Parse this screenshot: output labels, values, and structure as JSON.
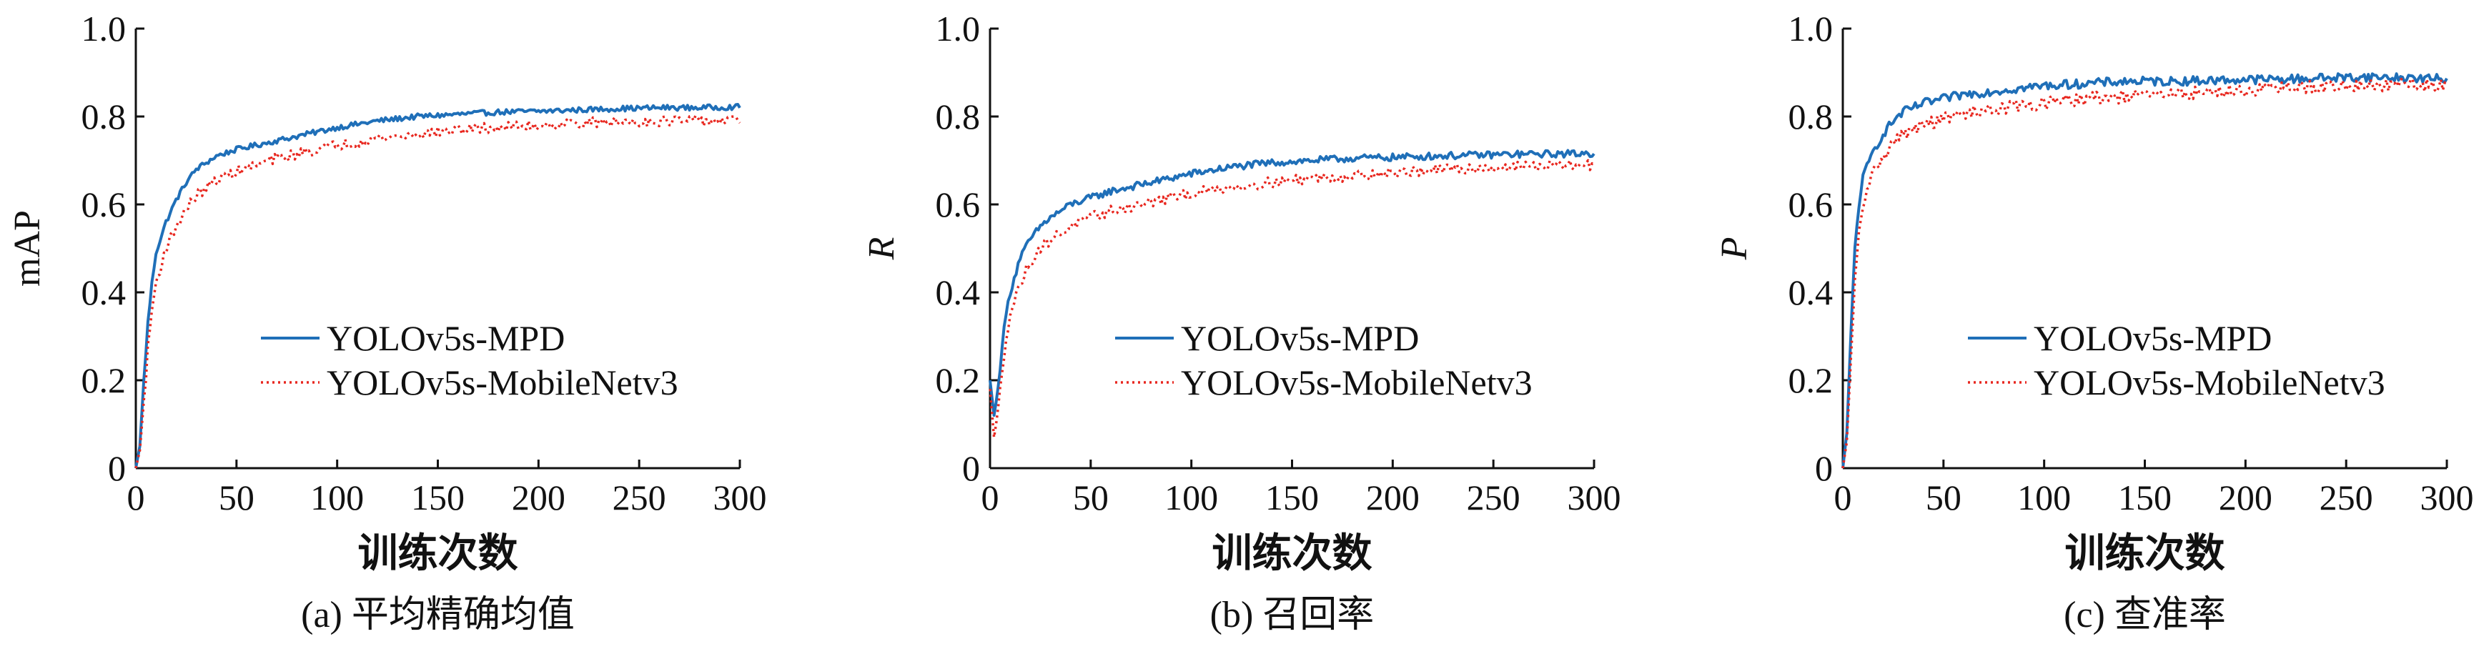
{
  "figure": {
    "colors": {
      "mpd": "#1f6fb8",
      "mobilenet": "#e8271f",
      "axis": "#111111"
    }
  },
  "chart_data": [
    {
      "type": "line",
      "caption": "(a) 平均精确均值",
      "xlabel": "训练次数",
      "ylabel": "mAP",
      "ylabel_italic": false,
      "xlim": [
        0,
        300
      ],
      "ylim": [
        0,
        1.0
      ],
      "xticks": [
        "0",
        "50",
        "100",
        "150",
        "200",
        "250",
        "300"
      ],
      "yticks": [
        "0",
        "0.2",
        "0.4",
        "0.6",
        "0.8",
        "1.0"
      ],
      "legend_position": "center-right",
      "series": [
        {
          "name": "YOLOv5s-MPD",
          "style": "solid",
          "color": "#1f6fb8",
          "points": [
            [
              0,
              0
            ],
            [
              2,
              0.05
            ],
            [
              4,
              0.2
            ],
            [
              6,
              0.33
            ],
            [
              8,
              0.42
            ],
            [
              10,
              0.49
            ],
            [
              15,
              0.56
            ],
            [
              20,
              0.61
            ],
            [
              25,
              0.65
            ],
            [
              30,
              0.68
            ],
            [
              40,
              0.71
            ],
            [
              50,
              0.725
            ],
            [
              60,
              0.735
            ],
            [
              70,
              0.745
            ],
            [
              80,
              0.755
            ],
            [
              90,
              0.765
            ],
            [
              100,
              0.775
            ],
            [
              120,
              0.79
            ],
            [
              140,
              0.8
            ],
            [
              160,
              0.805
            ],
            [
              180,
              0.81
            ],
            [
              200,
              0.812
            ],
            [
              220,
              0.815
            ],
            [
              240,
              0.818
            ],
            [
              260,
              0.82
            ],
            [
              280,
              0.82
            ],
            [
              300,
              0.822
            ]
          ],
          "noise": 0.006
        },
        {
          "name": "YOLOv5s-MobileNetv3",
          "style": "dotted",
          "color": "#e8271f",
          "points": [
            [
              0,
              0
            ],
            [
              2,
              0.04
            ],
            [
              4,
              0.15
            ],
            [
              6,
              0.27
            ],
            [
              8,
              0.36
            ],
            [
              10,
              0.42
            ],
            [
              15,
              0.5
            ],
            [
              20,
              0.55
            ],
            [
              25,
              0.59
            ],
            [
              30,
              0.62
            ],
            [
              40,
              0.655
            ],
            [
              50,
              0.675
            ],
            [
              60,
              0.69
            ],
            [
              70,
              0.705
            ],
            [
              80,
              0.715
            ],
            [
              90,
              0.725
            ],
            [
              100,
              0.735
            ],
            [
              120,
              0.75
            ],
            [
              140,
              0.76
            ],
            [
              160,
              0.77
            ],
            [
              180,
              0.775
            ],
            [
              200,
              0.78
            ],
            [
              220,
              0.785
            ],
            [
              240,
              0.788
            ],
            [
              260,
              0.79
            ],
            [
              280,
              0.79
            ],
            [
              300,
              0.79
            ]
          ],
          "noise": 0.012
        }
      ]
    },
    {
      "type": "line",
      "caption": "(b) 召回率",
      "xlabel": "训练次数",
      "ylabel": "R",
      "ylabel_italic": true,
      "xlim": [
        0,
        300
      ],
      "ylim": [
        0,
        1.0
      ],
      "xticks": [
        "0",
        "50",
        "100",
        "150",
        "200",
        "250",
        "300"
      ],
      "yticks": [
        "0",
        "0.2",
        "0.4",
        "0.6",
        "0.8",
        "1.0"
      ],
      "legend_position": "center-right",
      "series": [
        {
          "name": "YOLOv5s-MPD",
          "style": "solid",
          "color": "#1f6fb8",
          "points": [
            [
              0,
              0.2
            ],
            [
              2,
              0.12
            ],
            [
              4,
              0.18
            ],
            [
              6,
              0.28
            ],
            [
              8,
              0.35
            ],
            [
              10,
              0.4
            ],
            [
              15,
              0.48
            ],
            [
              20,
              0.52
            ],
            [
              25,
              0.55
            ],
            [
              30,
              0.57
            ],
            [
              40,
              0.6
            ],
            [
              50,
              0.615
            ],
            [
              60,
              0.63
            ],
            [
              70,
              0.64
            ],
            [
              80,
              0.65
            ],
            [
              90,
              0.66
            ],
            [
              100,
              0.67
            ],
            [
              120,
              0.685
            ],
            [
              140,
              0.695
            ],
            [
              160,
              0.7
            ],
            [
              180,
              0.705
            ],
            [
              200,
              0.707
            ],
            [
              220,
              0.71
            ],
            [
              240,
              0.712
            ],
            [
              260,
              0.714
            ],
            [
              280,
              0.715
            ],
            [
              300,
              0.716
            ]
          ],
          "noise": 0.008
        },
        {
          "name": "YOLOv5s-MobileNetv3",
          "style": "dotted",
          "color": "#e8271f",
          "points": [
            [
              0,
              0.18
            ],
            [
              2,
              0.07
            ],
            [
              4,
              0.13
            ],
            [
              6,
              0.22
            ],
            [
              8,
              0.3
            ],
            [
              10,
              0.35
            ],
            [
              15,
              0.42
            ],
            [
              20,
              0.47
            ],
            [
              25,
              0.5
            ],
            [
              30,
              0.52
            ],
            [
              40,
              0.55
            ],
            [
              50,
              0.57
            ],
            [
              60,
              0.585
            ],
            [
              70,
              0.595
            ],
            [
              80,
              0.605
            ],
            [
              90,
              0.615
            ],
            [
              100,
              0.625
            ],
            [
              120,
              0.64
            ],
            [
              140,
              0.65
            ],
            [
              160,
              0.66
            ],
            [
              180,
              0.665
            ],
            [
              200,
              0.672
            ],
            [
              220,
              0.678
            ],
            [
              240,
              0.682
            ],
            [
              260,
              0.686
            ],
            [
              280,
              0.688
            ],
            [
              300,
              0.69
            ]
          ],
          "noise": 0.012
        }
      ]
    },
    {
      "type": "line",
      "caption": "(c) 查准率",
      "xlabel": "训练次数",
      "ylabel": "P",
      "ylabel_italic": true,
      "xlim": [
        0,
        300
      ],
      "ylim": [
        0,
        1.0
      ],
      "xticks": [
        "0",
        "50",
        "100",
        "150",
        "200",
        "250",
        "300"
      ],
      "yticks": [
        "0",
        "0.2",
        "0.4",
        "0.6",
        "0.8",
        "1.0"
      ],
      "legend_position": "center-right",
      "series": [
        {
          "name": "YOLOv5s-MPD",
          "style": "solid",
          "color": "#1f6fb8",
          "points": [
            [
              0,
              0
            ],
            [
              2,
              0.08
            ],
            [
              4,
              0.3
            ],
            [
              6,
              0.5
            ],
            [
              8,
              0.6
            ],
            [
              10,
              0.66
            ],
            [
              15,
              0.72
            ],
            [
              20,
              0.76
            ],
            [
              25,
              0.79
            ],
            [
              30,
              0.81
            ],
            [
              40,
              0.83
            ],
            [
              50,
              0.84
            ],
            [
              60,
              0.85
            ],
            [
              70,
              0.855
            ],
            [
              80,
              0.86
            ],
            [
              90,
              0.865
            ],
            [
              100,
              0.87
            ],
            [
              120,
              0.875
            ],
            [
              140,
              0.88
            ],
            [
              160,
              0.88
            ],
            [
              180,
              0.882
            ],
            [
              200,
              0.884
            ],
            [
              220,
              0.885
            ],
            [
              240,
              0.888
            ],
            [
              260,
              0.89
            ],
            [
              280,
              0.888
            ],
            [
              300,
              0.885
            ]
          ],
          "noise": 0.01
        },
        {
          "name": "YOLOv5s-MobileNetv3",
          "style": "dotted",
          "color": "#e8271f",
          "points": [
            [
              0,
              0
            ],
            [
              2,
              0.06
            ],
            [
              4,
              0.24
            ],
            [
              6,
              0.42
            ],
            [
              8,
              0.53
            ],
            [
              10,
              0.6
            ],
            [
              15,
              0.67
            ],
            [
              20,
              0.71
            ],
            [
              25,
              0.74
            ],
            [
              30,
              0.76
            ],
            [
              40,
              0.78
            ],
            [
              50,
              0.795
            ],
            [
              60,
              0.805
            ],
            [
              70,
              0.815
            ],
            [
              80,
              0.82
            ],
            [
              90,
              0.825
            ],
            [
              100,
              0.83
            ],
            [
              120,
              0.84
            ],
            [
              140,
              0.845
            ],
            [
              160,
              0.85
            ],
            [
              180,
              0.855
            ],
            [
              200,
              0.86
            ],
            [
              220,
              0.865
            ],
            [
              240,
              0.868
            ],
            [
              260,
              0.87
            ],
            [
              280,
              0.872
            ],
            [
              300,
              0.87
            ]
          ],
          "noise": 0.015
        }
      ]
    }
  ]
}
